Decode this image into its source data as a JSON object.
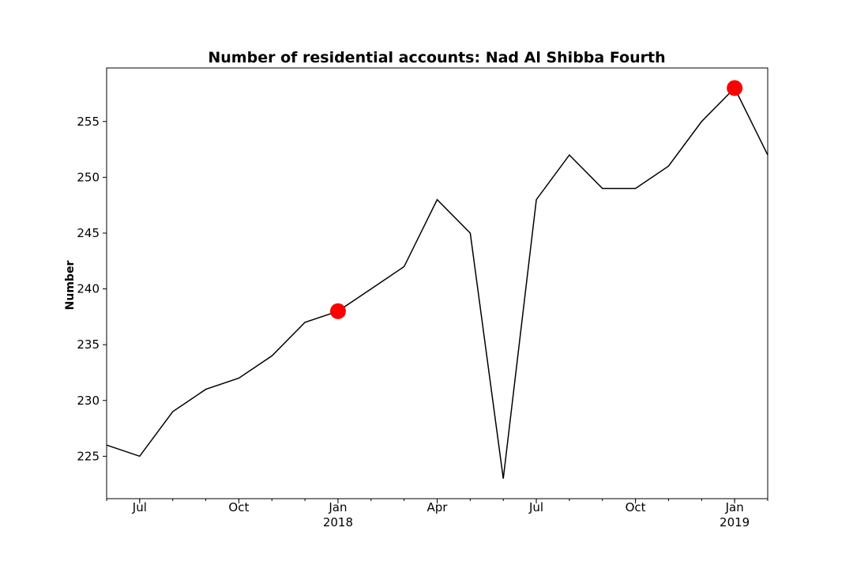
{
  "chart_data": {
    "type": "line",
    "title": "Number of residential accounts: Nad Al Shibba Fourth",
    "xlabel": "",
    "ylabel": "Number",
    "x": [
      "2017-06",
      "2017-07",
      "2017-08",
      "2017-09",
      "2017-10",
      "2017-11",
      "2017-12",
      "2018-01",
      "2018-02",
      "2018-03",
      "2018-04",
      "2018-05",
      "2018-06",
      "2018-07",
      "2018-08",
      "2018-09",
      "2018-10",
      "2018-11",
      "2018-12",
      "2019-01",
      "2019-02"
    ],
    "xlim": [
      "2017-06",
      "2019-02"
    ],
    "ylim": [
      221.2,
      259.8
    ],
    "series": [
      {
        "values": [
          226,
          225,
          229,
          231,
          232,
          234,
          237,
          238,
          240,
          242,
          248,
          245,
          223,
          248,
          252,
          249,
          249,
          251,
          255,
          258,
          252
        ],
        "color": "#000000"
      }
    ],
    "highlights": [
      {
        "x": "2018-01",
        "y": 238,
        "color": "#ff0000"
      },
      {
        "x": "2019-01",
        "y": 258,
        "color": "#ff0000"
      }
    ],
    "y_ticks": [
      225,
      230,
      235,
      240,
      245,
      250,
      255
    ],
    "x_major_ticks": [
      {
        "x": "2017-07",
        "label": "Jul",
        "sublabel": ""
      },
      {
        "x": "2017-10",
        "label": "Oct",
        "sublabel": ""
      },
      {
        "x": "2018-01",
        "label": "Jan",
        "sublabel": "2018"
      },
      {
        "x": "2018-04",
        "label": "Apr",
        "sublabel": ""
      },
      {
        "x": "2018-07",
        "label": "Jul",
        "sublabel": ""
      },
      {
        "x": "2018-10",
        "label": "Oct",
        "sublabel": ""
      },
      {
        "x": "2019-01",
        "label": "Jan",
        "sublabel": "2019"
      }
    ],
    "grid": false,
    "legend": "none"
  }
}
